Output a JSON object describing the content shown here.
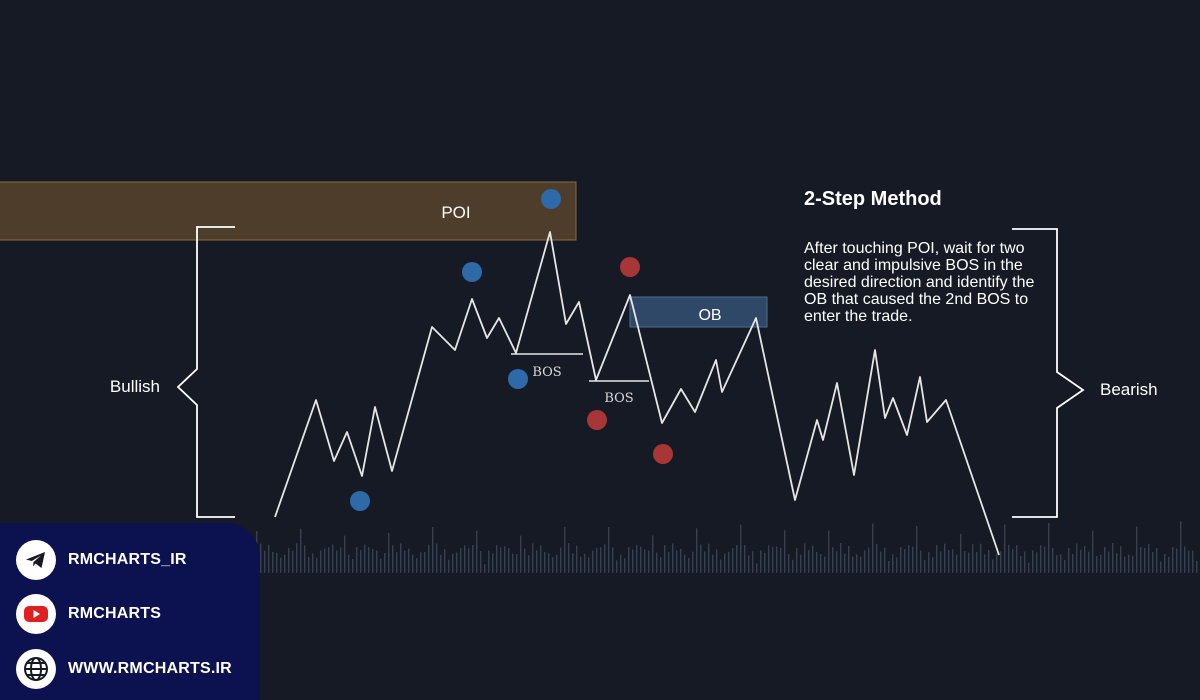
{
  "chart_data": {
    "type": "line",
    "zones": {
      "poi_label": "POI",
      "ob_label": "OB",
      "poi_color": "#4e3d2b",
      "ob_color": "#2f4868"
    },
    "bos_labels": [
      "BOS",
      "BOS"
    ],
    "side_labels": {
      "left": "Bullish",
      "right": "Bearish"
    },
    "colors": {
      "line": "#e6e6e6",
      "bullish_dot": "#2e6aa8",
      "bearish_dot": "#a83636",
      "volume": "#3a4050",
      "bracket": "#ffffff"
    }
  },
  "method": {
    "title": "2-Step Method",
    "body": "After touching POI, wait for two clear and impulsive BOS in the desired direction and identify the OB that caused the 2nd BOS to enter the trade."
  },
  "social": [
    {
      "icon": "telegram-icon",
      "label": "RMCHARTS_IR"
    },
    {
      "icon": "youtube-icon",
      "label": "RMCHARTS"
    },
    {
      "icon": "globe-icon",
      "label": "WWW.RMCHARTS.IR"
    }
  ]
}
